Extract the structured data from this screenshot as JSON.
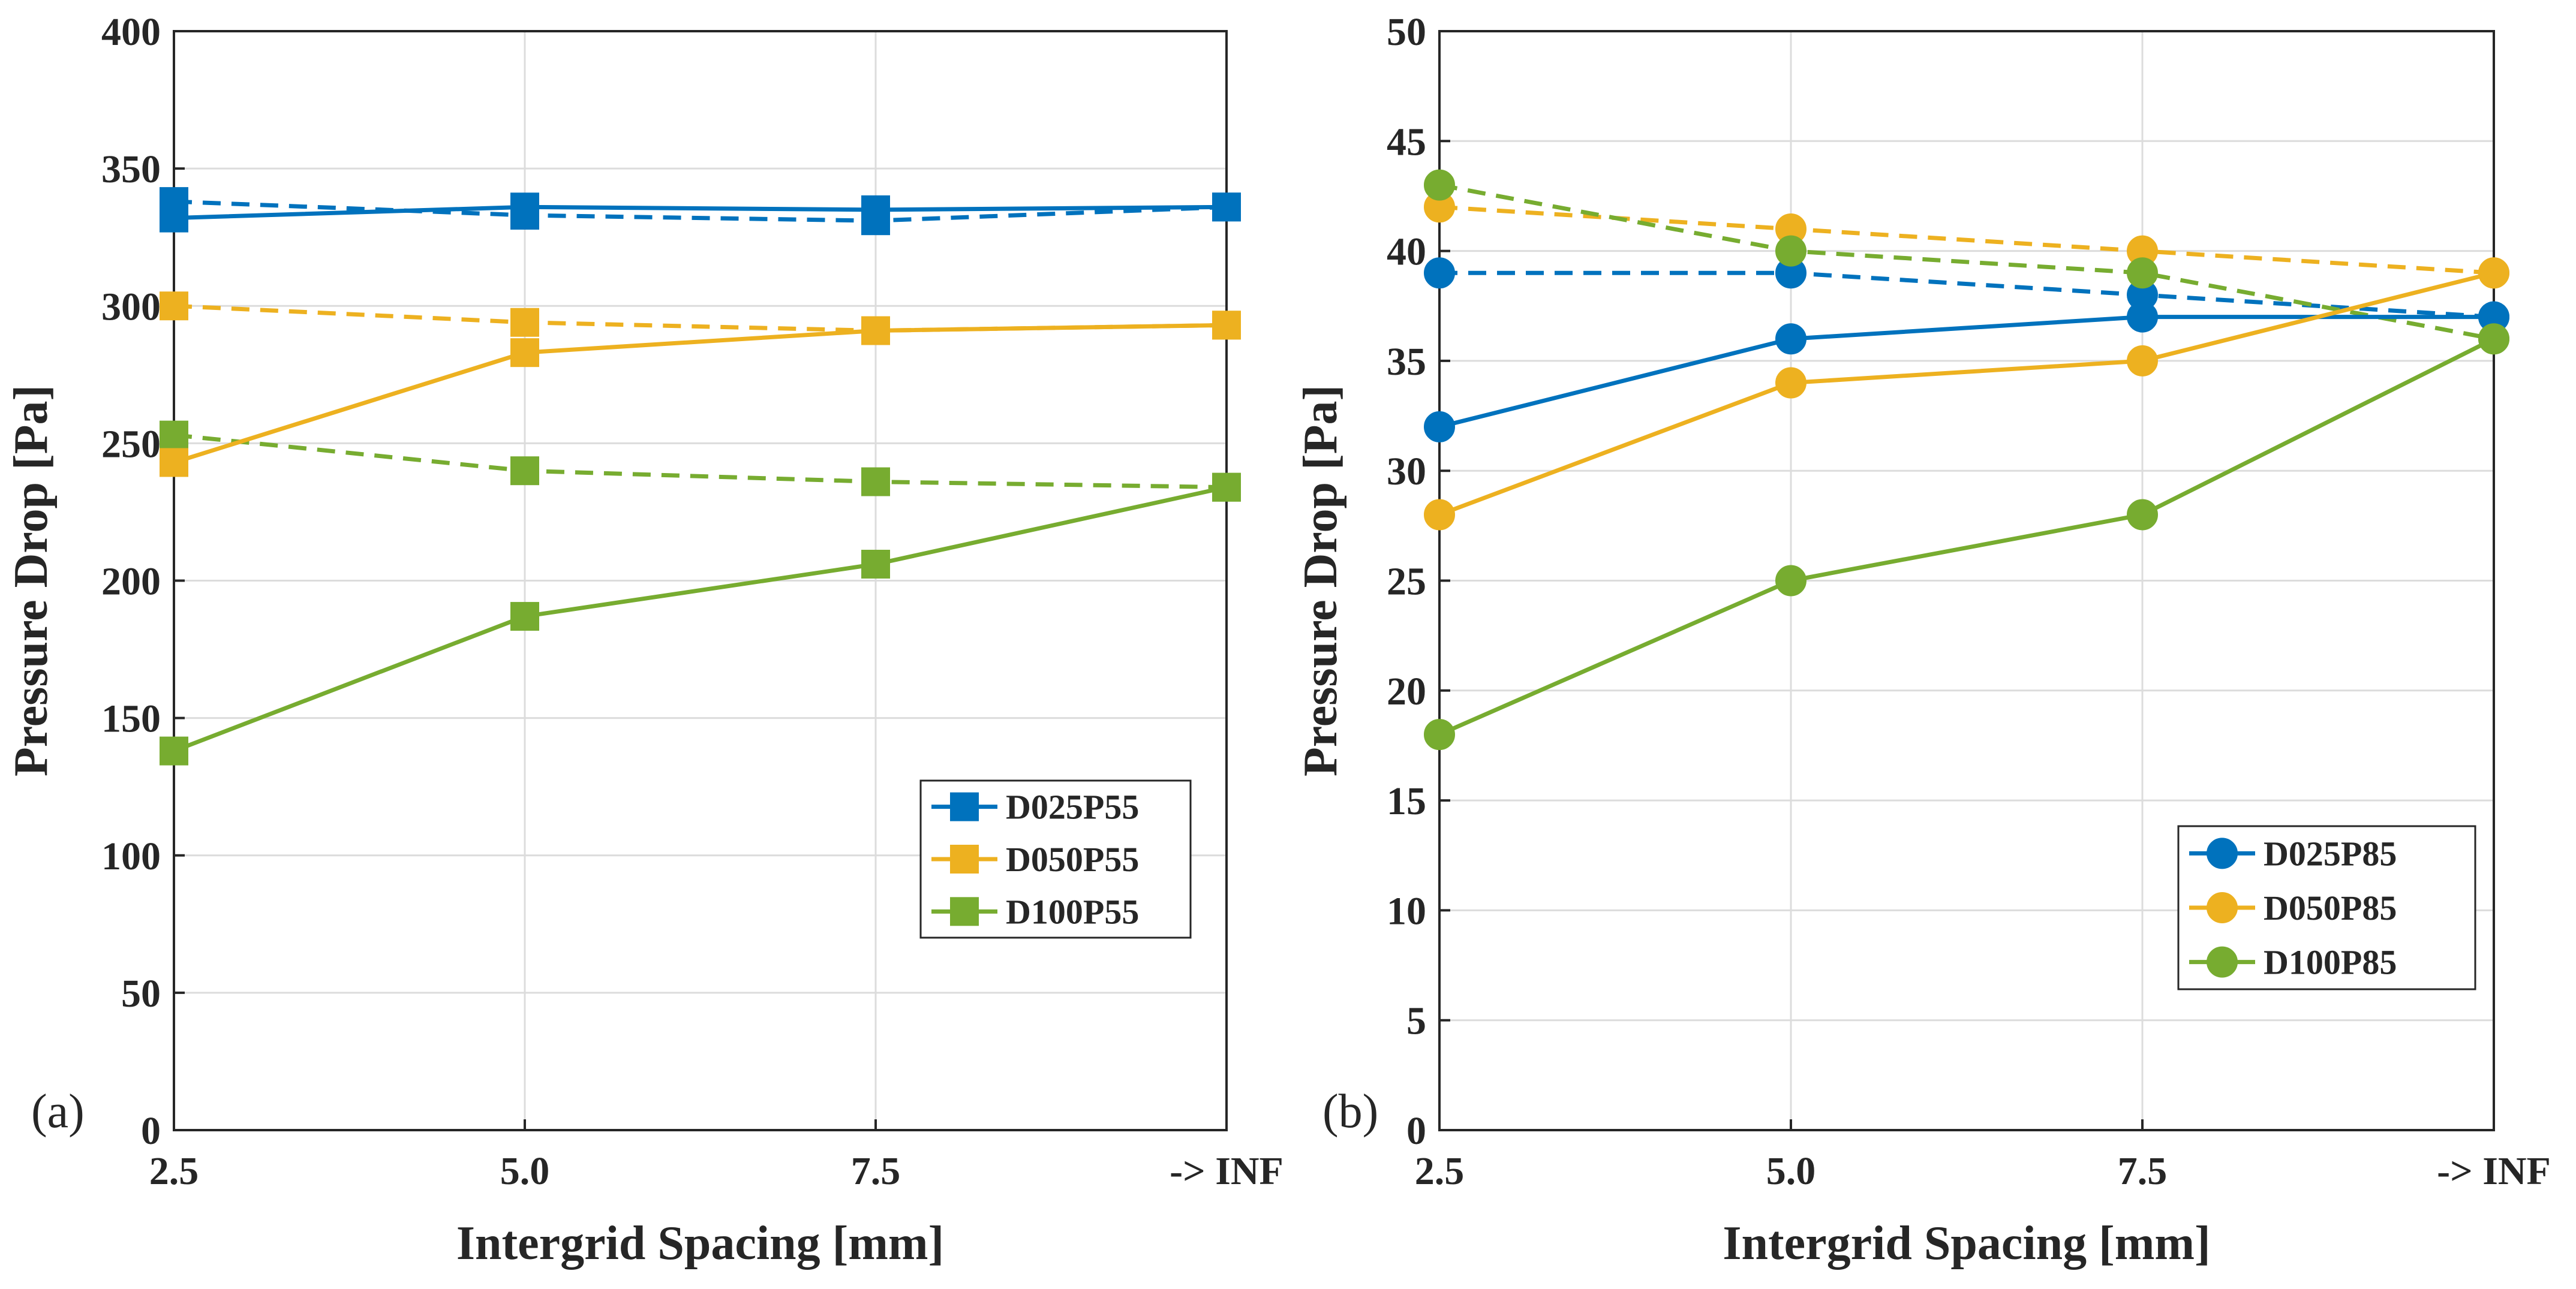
{
  "chart_data": [
    {
      "type": "line",
      "panel_label": "(a)",
      "title": "",
      "xlabel": "Intergrid Spacing [mm]",
      "ylabel": "Pressure Drop [Pa]",
      "categories": [
        "2.5",
        "5.0",
        "7.5",
        "-> INF"
      ],
      "ylim": [
        0,
        400
      ],
      "yticks": [
        "0",
        "50",
        "100",
        "150",
        "200",
        "250",
        "300",
        "350",
        "400"
      ],
      "grid": true,
      "marker": "square",
      "legend_position": "lower-right",
      "colors": [
        "#0072BD",
        "#EDB120",
        "#77AC30"
      ],
      "series": [
        {
          "name": "D025P55",
          "style": "solid",
          "values": [
            332,
            336,
            335,
            336
          ]
        },
        {
          "name": "D050P55",
          "style": "solid",
          "values": [
            243,
            283,
            291,
            293
          ]
        },
        {
          "name": "D100P55",
          "style": "solid",
          "values": [
            138,
            187,
            206,
            234
          ]
        }
      ],
      "dashed_series": [
        {
          "color_of": "D025P55",
          "style": "dashed",
          "values": [
            338,
            333,
            331,
            336
          ]
        },
        {
          "color_of": "D050P55",
          "style": "dashed",
          "values": [
            300,
            294,
            291,
            293
          ]
        },
        {
          "color_of": "D100P55",
          "style": "dashed",
          "values": [
            253,
            240,
            236,
            234
          ]
        }
      ]
    },
    {
      "type": "line",
      "panel_label": "(b)",
      "title": "",
      "xlabel": "Intergrid Spacing [mm]",
      "ylabel": "Pressure Drop [Pa]",
      "categories": [
        "2.5",
        "5.0",
        "7.5",
        "-> INF"
      ],
      "ylim": [
        0,
        50
      ],
      "yticks": [
        "0",
        "5",
        "10",
        "15",
        "20",
        "25",
        "30",
        "35",
        "40",
        "45",
        "50"
      ],
      "grid": true,
      "marker": "circle",
      "legend_position": "lower-right",
      "colors": [
        "#0072BD",
        "#EDB120",
        "#77AC30"
      ],
      "series": [
        {
          "name": "D025P85",
          "style": "solid",
          "values": [
            32,
            36,
            37,
            37
          ]
        },
        {
          "name": "D050P85",
          "style": "solid",
          "values": [
            28,
            34,
            35,
            39
          ]
        },
        {
          "name": "D100P85",
          "style": "solid",
          "values": [
            18,
            25,
            28,
            36
          ]
        }
      ],
      "dashed_series": [
        {
          "color_of": "D025P85",
          "style": "dashed",
          "values": [
            39,
            39,
            38,
            37
          ]
        },
        {
          "color_of": "D050P85",
          "style": "dashed",
          "values": [
            42,
            41,
            40,
            39
          ]
        },
        {
          "color_of": "D100P85",
          "style": "dashed",
          "values": [
            43,
            40,
            39,
            36
          ]
        }
      ]
    }
  ]
}
